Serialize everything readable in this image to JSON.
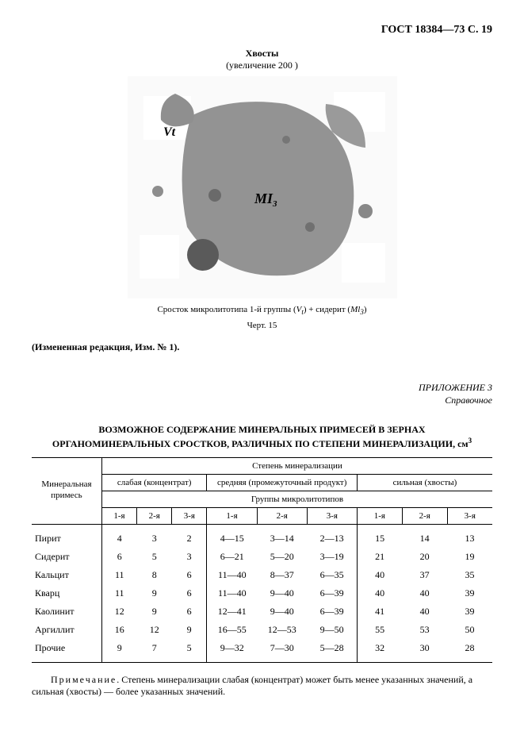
{
  "header": {
    "doc_code": "ГОСТ 18384—73 С. 19"
  },
  "figure": {
    "title": "Хвосты",
    "subtitle": "(увеличение  200 )",
    "label_v": "Vt",
    "label_mi": "MI",
    "label_mi_sub": "3",
    "caption_prefix": "Сросток микролитотипа 1-й группы (",
    "caption_v": "V",
    "caption_vsub": "t",
    "caption_mid": ") + сидерит (",
    "caption_mi": "Ml",
    "caption_misub": "3",
    "caption_suffix": ")",
    "fig_number": "Черт. 15"
  },
  "edition_note": "(Измененная редакция, Изм. № 1).",
  "appendix": {
    "line1": "ПРИЛОЖЕНИЕ 3",
    "line2": "Справочное"
  },
  "table": {
    "title_line1": "ВОЗМОЖНОЕ СОДЕРЖАНИЕ МИНЕРАЛЬНЫХ ПРИМЕСЕЙ В ЗЕРНАХ",
    "title_line2_a": "ОРГАНОМИНЕРАЛЬНЫХ СРОСТКОВ, РАЗЛИЧНЫХ ПО СТЕПЕНИ МИНЕРАЛИЗАЦИИ, см",
    "title_line2_sup": "3",
    "col_mineral": "Минеральная примесь",
    "hdr_degree": "Степень минерализации",
    "hdr_weak": "слабая (концентрат)",
    "hdr_medium": "средняя (промежуточный продукт)",
    "hdr_strong": "сильная (хвосты)",
    "hdr_groups": "Группы микролитотипов",
    "sub_1": "1-я",
    "sub_2": "2-я",
    "sub_3": "3-я",
    "rows": [
      {
        "name": "Пирит",
        "c": [
          "4",
          "3",
          "2",
          "4—15",
          "3—14",
          "2—13",
          "15",
          "14",
          "13"
        ]
      },
      {
        "name": "Сидерит",
        "c": [
          "6",
          "5",
          "3",
          "6—21",
          "5—20",
          "3—19",
          "21",
          "20",
          "19"
        ]
      },
      {
        "name": "Кальцит",
        "c": [
          "11",
          "8",
          "6",
          "11—40",
          "8—37",
          "6—35",
          "40",
          "37",
          "35"
        ]
      },
      {
        "name": "Кварц",
        "c": [
          "11",
          "9",
          "6",
          "11—40",
          "9—40",
          "6—39",
          "40",
          "40",
          "39"
        ]
      },
      {
        "name": "Каолинит",
        "c": [
          "12",
          "9",
          "6",
          "12—41",
          "9—40",
          "6—39",
          "41",
          "40",
          "39"
        ]
      },
      {
        "name": "Аргиллит",
        "c": [
          "16",
          "12",
          "9",
          "16—55",
          "12—53",
          "9—50",
          "55",
          "53",
          "50"
        ]
      },
      {
        "name": "Прочие",
        "c": [
          "9",
          "7",
          "5",
          "9—32",
          "7—30",
          "5—28",
          "32",
          "30",
          "28"
        ]
      }
    ]
  },
  "footnote": {
    "label": "Примечание",
    "text": ". Степень минерализации слабая (концентрат) может быть менее указанных значений, а сильная (хвосты) — более указанных значений."
  }
}
